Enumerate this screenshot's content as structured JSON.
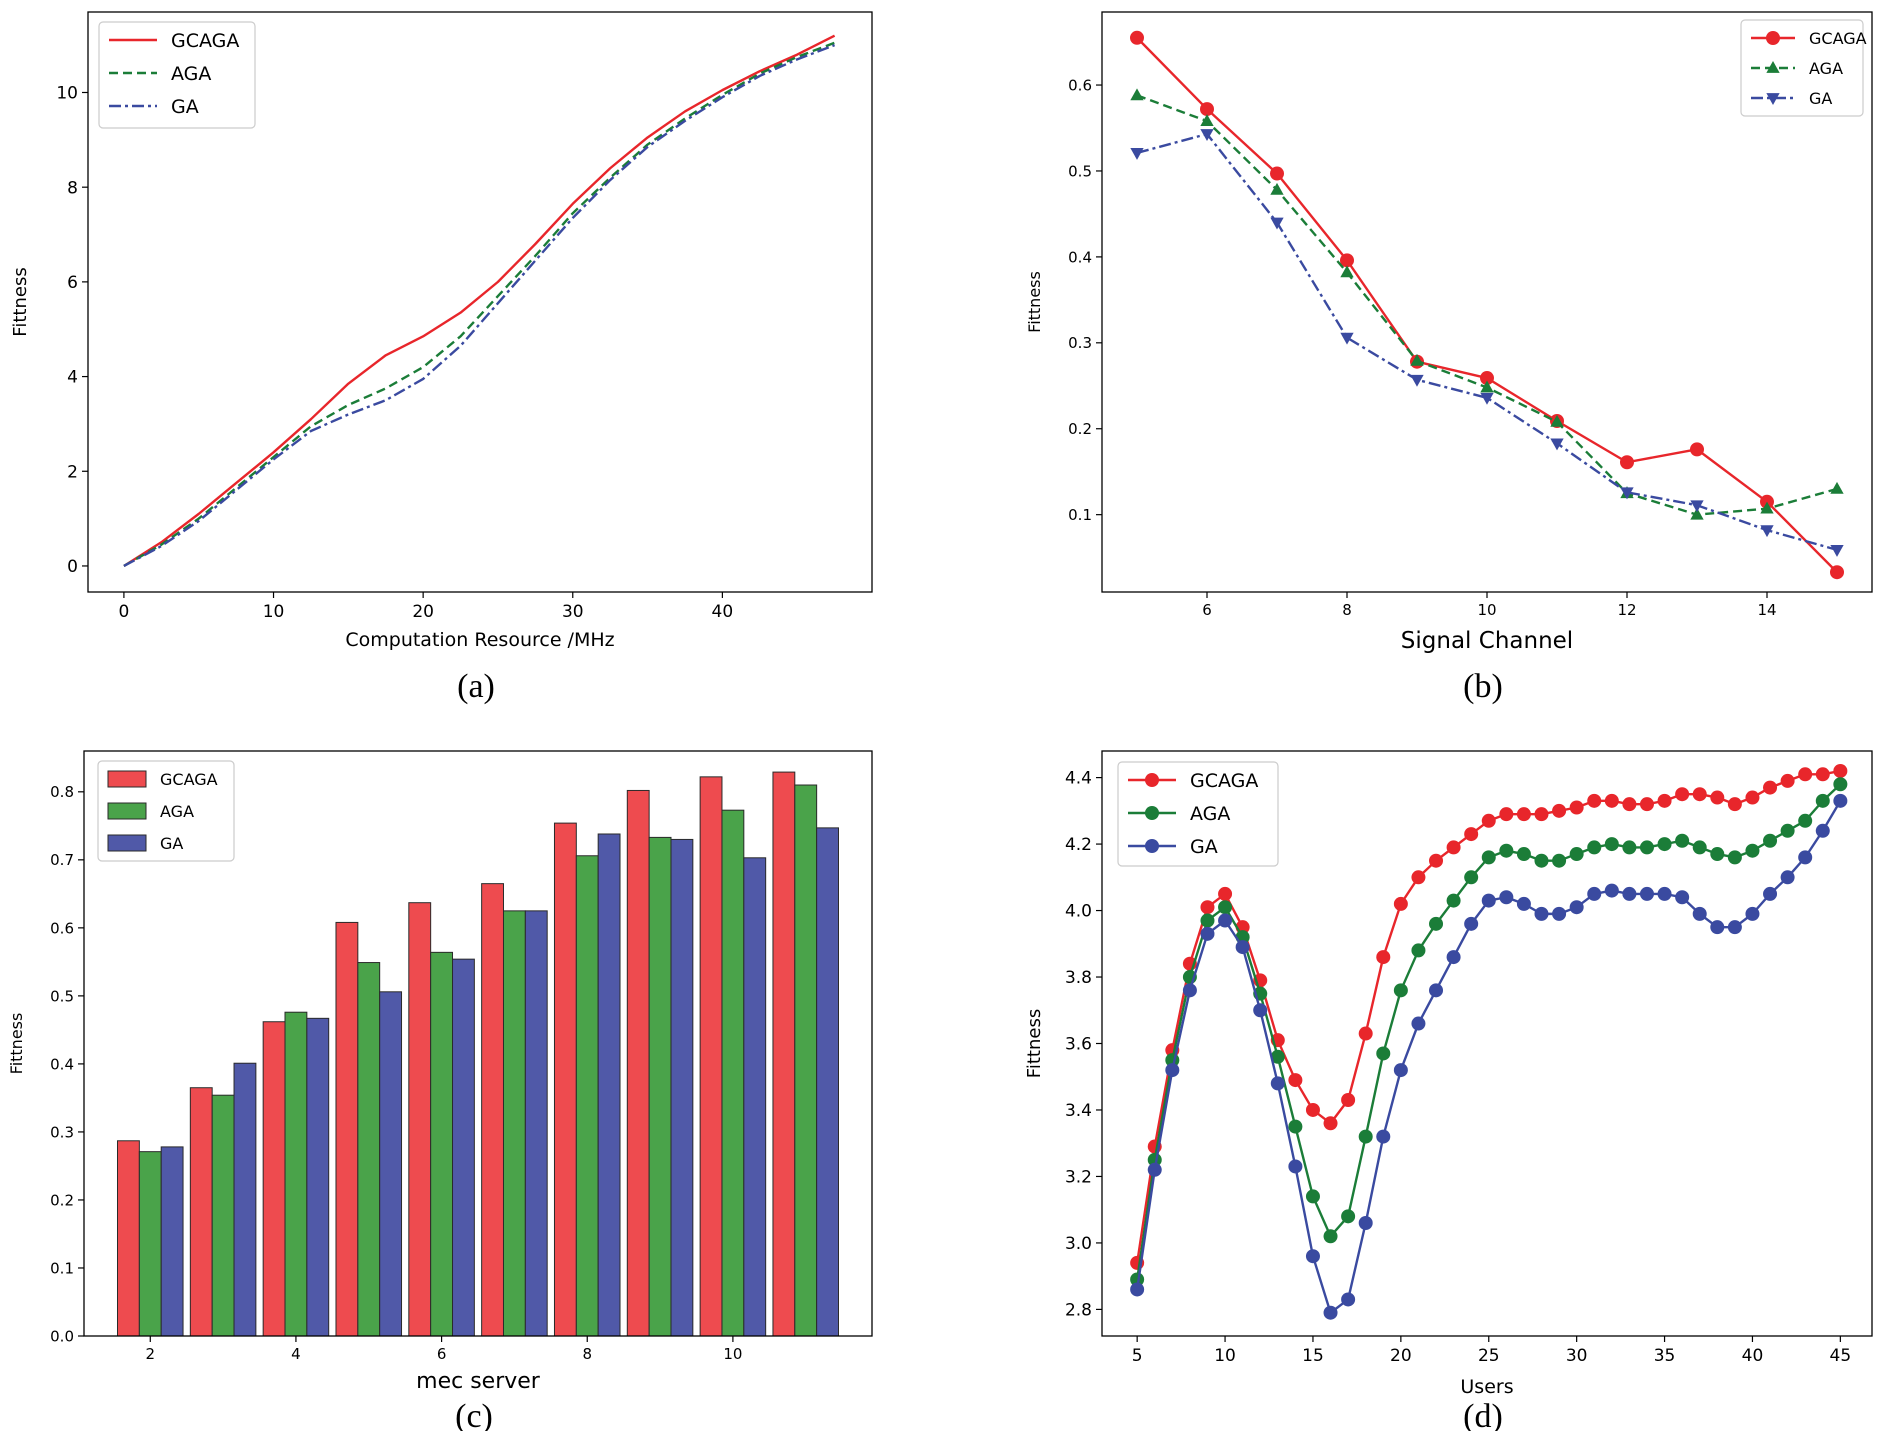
{
  "colors": {
    "gcaga": "#e8262b",
    "aga": "#1b7d38",
    "ga": "#3a4aa0",
    "bar_gcaga": "#ee4b4f",
    "bar_aga": "#4aa34a",
    "bar_ga": "#5059a8"
  },
  "chart_data": [
    {
      "type": "line",
      "panel_label": "(a)",
      "title": "",
      "xlabel": "Computation Resource /MHz",
      "ylabel": "Fittness",
      "xlim": [
        -2.4,
        50
      ],
      "ylim": [
        -0.55,
        11.7
      ],
      "xticks": [
        0,
        10,
        20,
        30,
        40
      ],
      "xtick_labels": [
        "0",
        "10",
        "20",
        "30",
        "40"
      ],
      "yticks": [
        0,
        2,
        4,
        6,
        8,
        10
      ],
      "ytick_labels": [
        "0",
        "2",
        "4",
        "6",
        "8",
        "10"
      ],
      "legend": "top-left",
      "x": [
        0,
        2.5,
        5,
        7.5,
        10,
        12.5,
        15,
        17.5,
        20,
        22.5,
        25,
        27.5,
        30,
        32.5,
        35,
        37.5,
        40,
        42.5,
        45,
        47.5
      ],
      "series": [
        {
          "name": "GCAGA",
          "style": "solid",
          "marker": "none",
          "values": [
            0,
            0.5,
            1.1,
            1.75,
            2.4,
            3.1,
            3.85,
            4.45,
            4.85,
            5.35,
            6.0,
            6.8,
            7.65,
            8.4,
            9.05,
            9.6,
            10.05,
            10.45,
            10.8,
            11.2
          ]
        },
        {
          "name": "AGA",
          "style": "dashed",
          "marker": "none",
          "values": [
            0,
            0.45,
            1.0,
            1.65,
            2.3,
            2.95,
            3.4,
            3.75,
            4.2,
            4.85,
            5.7,
            6.55,
            7.45,
            8.2,
            8.9,
            9.45,
            9.95,
            10.4,
            10.75,
            11.05
          ]
        },
        {
          "name": "GA",
          "style": "dashdot",
          "marker": "none",
          "values": [
            0,
            0.42,
            0.95,
            1.6,
            2.25,
            2.85,
            3.2,
            3.5,
            3.95,
            4.65,
            5.55,
            6.45,
            7.35,
            8.15,
            8.85,
            9.4,
            9.9,
            10.35,
            10.7,
            11.0
          ]
        }
      ]
    },
    {
      "type": "line",
      "panel_label": "(b)",
      "title": "",
      "xlabel": "Signal Channel",
      "ylabel": "Fittness",
      "xlim": [
        4.5,
        15.5
      ],
      "ylim": [
        0.01,
        0.685
      ],
      "xticks": [
        6,
        8,
        10,
        12,
        14
      ],
      "xtick_labels": [
        "6",
        "8",
        "10",
        "12",
        "14"
      ],
      "yticks": [
        0.1,
        0.2,
        0.3,
        0.4,
        0.5,
        0.6
      ],
      "ytick_labels": [
        "0.1",
        "0.2",
        "0.3",
        "0.4",
        "0.5",
        "0.6"
      ],
      "legend": "top-right",
      "x": [
        5,
        6,
        7,
        8,
        9,
        10,
        11,
        12,
        13,
        14,
        15
      ],
      "series": [
        {
          "name": "GCAGA",
          "style": "solid",
          "marker": "circle",
          "values": [
            0.655,
            0.572,
            0.497,
            0.396,
            0.278,
            0.259,
            0.209,
            0.161,
            0.176,
            0.115,
            0.033
          ]
        },
        {
          "name": "AGA",
          "style": "dashed",
          "marker": "triangle-up",
          "values": [
            0.588,
            0.558,
            0.478,
            0.382,
            0.279,
            0.248,
            0.208,
            0.125,
            0.1,
            0.107,
            0.13
          ]
        },
        {
          "name": "GA",
          "style": "dashdot",
          "marker": "triangle-down",
          "values": [
            0.521,
            0.543,
            0.44,
            0.306,
            0.257,
            0.236,
            0.183,
            0.126,
            0.111,
            0.082,
            0.059
          ]
        }
      ]
    },
    {
      "type": "bar",
      "panel_label": "(c)",
      "title": "",
      "xlabel": "mec server",
      "ylabel": "Fittness",
      "xlim": [
        1.09,
        11.91
      ],
      "ylim": [
        0,
        0.86
      ],
      "xticks": [
        2,
        4,
        6,
        8,
        10
      ],
      "xtick_labels": [
        "2",
        "4",
        "6",
        "8",
        "10"
      ],
      "yticks": [
        0,
        0.1,
        0.2,
        0.3,
        0.4,
        0.5,
        0.6,
        0.7,
        0.8
      ],
      "ytick_labels": [
        "0.0",
        "0.1",
        "0.2",
        "0.3",
        "0.4",
        "0.5",
        "0.6",
        "0.7",
        "0.8"
      ],
      "legend": "top-left",
      "categories": [
        2,
        3,
        4,
        5,
        6,
        7,
        8,
        9,
        10,
        11
      ],
      "series": [
        {
          "name": "GCAGA",
          "values": [
            0.287,
            0.365,
            0.462,
            0.608,
            0.637,
            0.665,
            0.754,
            0.802,
            0.822,
            0.829
          ]
        },
        {
          "name": "AGA",
          "values": [
            0.271,
            0.354,
            0.476,
            0.549,
            0.564,
            0.625,
            0.706,
            0.733,
            0.773,
            0.81
          ]
        },
        {
          "name": "GA",
          "values": [
            0.278,
            0.401,
            0.467,
            0.506,
            0.554,
            0.625,
            0.738,
            0.73,
            0.703,
            0.747
          ]
        }
      ]
    },
    {
      "type": "line",
      "panel_label": "(d)",
      "title": "",
      "xlabel": "Users",
      "ylabel": "Fittness",
      "xlim": [
        3.0,
        46.8
      ],
      "ylim": [
        2.72,
        4.48
      ],
      "xticks": [
        5,
        10,
        15,
        20,
        25,
        30,
        35,
        40,
        45
      ],
      "xtick_labels": [
        "5",
        "10",
        "15",
        "20",
        "25",
        "30",
        "35",
        "40",
        "45"
      ],
      "yticks": [
        2.8,
        3.0,
        3.2,
        3.4,
        3.6,
        3.8,
        4.0,
        4.2,
        4.4
      ],
      "ytick_labels": [
        "2.8",
        "3.0",
        "3.2",
        "3.4",
        "3.6",
        "3.8",
        "4.0",
        "4.2",
        "4.4"
      ],
      "legend": "top-left",
      "x": [
        5,
        6,
        7,
        8,
        9,
        10,
        11,
        12,
        13,
        14,
        15,
        16,
        17,
        18,
        19,
        20,
        21,
        22,
        23,
        24,
        25,
        26,
        27,
        28,
        29,
        30,
        31,
        32,
        33,
        34,
        35,
        36,
        37,
        38,
        39,
        40,
        41,
        42,
        43,
        44,
        45
      ],
      "series": [
        {
          "name": "GCAGA",
          "style": "solid",
          "marker": "circle",
          "values": [
            2.94,
            3.29,
            3.58,
            3.84,
            4.01,
            4.05,
            3.95,
            3.79,
            3.61,
            3.49,
            3.4,
            3.36,
            3.43,
            3.63,
            3.86,
            4.02,
            4.1,
            4.15,
            4.19,
            4.23,
            4.27,
            4.29,
            4.29,
            4.29,
            4.3,
            4.31,
            4.33,
            4.33,
            4.32,
            4.32,
            4.33,
            4.35,
            4.35,
            4.34,
            4.32,
            4.34,
            4.37,
            4.39,
            4.41,
            4.41,
            4.42
          ]
        },
        {
          "name": "AGA",
          "style": "solid",
          "marker": "circle",
          "values": [
            2.89,
            3.25,
            3.55,
            3.8,
            3.97,
            4.01,
            3.92,
            3.75,
            3.56,
            3.35,
            3.14,
            3.02,
            3.08,
            3.32,
            3.57,
            3.76,
            3.88,
            3.96,
            4.03,
            4.1,
            4.16,
            4.18,
            4.17,
            4.15,
            4.15,
            4.17,
            4.19,
            4.2,
            4.19,
            4.19,
            4.2,
            4.21,
            4.19,
            4.17,
            4.16,
            4.18,
            4.21,
            4.24,
            4.27,
            4.33,
            4.38
          ]
        },
        {
          "name": "GA",
          "style": "solid",
          "marker": "circle",
          "values": [
            2.86,
            3.22,
            3.52,
            3.76,
            3.93,
            3.97,
            3.89,
            3.7,
            3.48,
            3.23,
            2.96,
            2.79,
            2.83,
            3.06,
            3.32,
            3.52,
            3.66,
            3.76,
            3.86,
            3.96,
            4.03,
            4.04,
            4.02,
            3.99,
            3.99,
            4.01,
            4.05,
            4.06,
            4.05,
            4.05,
            4.05,
            4.04,
            3.99,
            3.95,
            3.95,
            3.99,
            4.05,
            4.1,
            4.16,
            4.24,
            4.33
          ]
        }
      ]
    }
  ]
}
